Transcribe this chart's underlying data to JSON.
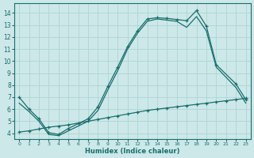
{
  "xlabel": "Humidex (Indice chaleur)",
  "bg_color": "#cce8e8",
  "grid_color": "#b0d4d4",
  "line_color": "#1a6e6e",
  "xlim": [
    -0.5,
    23.5
  ],
  "ylim": [
    3.5,
    14.8
  ],
  "xticks": [
    0,
    1,
    2,
    3,
    4,
    5,
    6,
    7,
    8,
    9,
    10,
    11,
    12,
    13,
    14,
    15,
    16,
    17,
    18,
    19,
    20,
    21,
    22,
    23
  ],
  "yticks": [
    4,
    5,
    6,
    7,
    8,
    9,
    10,
    11,
    12,
    13,
    14
  ],
  "line1_x": [
    0,
    1,
    2,
    3,
    4,
    5,
    6,
    7,
    8,
    9,
    10,
    11,
    12,
    13,
    14,
    15,
    16,
    17,
    18,
    19,
    20,
    22,
    23
  ],
  "line1_y": [
    7.0,
    6.0,
    5.2,
    4.05,
    3.9,
    4.4,
    4.8,
    5.2,
    6.2,
    7.9,
    9.5,
    11.2,
    12.5,
    13.5,
    13.6,
    13.55,
    13.45,
    13.35,
    14.2,
    12.9,
    9.7,
    8.1,
    6.8
  ],
  "line2_x": [
    0,
    1,
    2,
    3,
    4,
    5,
    6,
    7,
    8,
    9,
    10,
    11,
    12,
    13,
    14,
    15,
    16,
    17,
    18,
    19,
    20,
    22,
    23
  ],
  "line2_y": [
    6.5,
    5.8,
    5.0,
    3.9,
    3.8,
    4.2,
    4.6,
    5.0,
    5.9,
    7.6,
    9.2,
    11.0,
    12.3,
    13.3,
    13.5,
    13.4,
    13.3,
    12.8,
    13.7,
    12.5,
    9.5,
    7.8,
    6.5
  ],
  "line3_x": [
    0,
    1,
    2,
    3,
    4,
    5,
    6,
    7,
    8,
    9,
    10,
    11,
    12,
    13,
    14,
    15,
    16,
    17,
    18,
    19,
    20,
    21,
    22,
    23
  ],
  "line3_y": [
    4.1,
    4.2,
    4.35,
    4.5,
    4.6,
    4.7,
    4.85,
    5.0,
    5.15,
    5.3,
    5.45,
    5.6,
    5.75,
    5.9,
    6.0,
    6.1,
    6.2,
    6.3,
    6.4,
    6.5,
    6.6,
    6.7,
    6.8,
    6.9
  ]
}
